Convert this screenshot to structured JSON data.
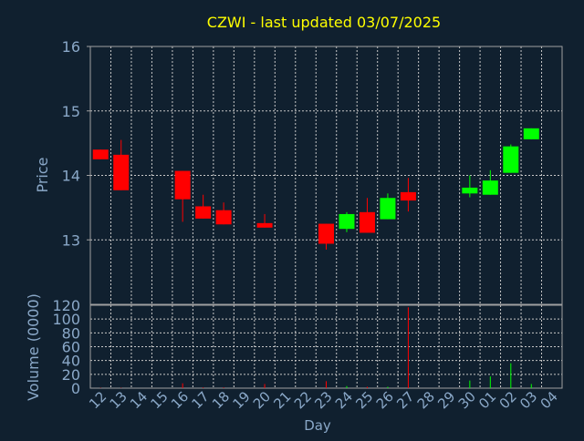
{
  "chart_data": {
    "type": "candlestick",
    "title": "CZWI - last updated 03/07/2025",
    "xlabel": "Day",
    "ylabel_price": "Price",
    "ylabel_volume": "Volume (0000)",
    "price_ylim": [
      12.0,
      16.0
    ],
    "price_ticks": [
      "16",
      "15",
      "14",
      "13"
    ],
    "volume_ylim": [
      0,
      120
    ],
    "volume_ticks": [
      "120",
      "100",
      "80",
      "60",
      "40",
      "20",
      "0"
    ],
    "x_tick_labels": [
      "12",
      "13",
      "14",
      "15",
      "16",
      "17",
      "18",
      "19",
      "20",
      "21",
      "22",
      "23",
      "24",
      "25",
      "26",
      "27",
      "28",
      "29",
      "30",
      "01",
      "02",
      "03",
      "04"
    ],
    "grid": true,
    "colors": {
      "background": "#10202f",
      "up": "#00ff00",
      "down": "#ff0000",
      "title": "#ffff00",
      "axis_text": "#8aa8c8",
      "frame": "#a0a0a0",
      "grid": "#c8c8c8"
    },
    "candles": [
      {
        "day": "12",
        "open": 14.4,
        "close": 14.25,
        "high": 14.4,
        "low": 14.25
      },
      {
        "day": "13",
        "open": 14.32,
        "close": 13.77,
        "high": 14.55,
        "low": 13.77
      },
      {
        "day": "16",
        "open": 14.07,
        "close": 13.63,
        "high": 14.07,
        "low": 13.28
      },
      {
        "day": "17",
        "open": 13.52,
        "close": 13.33,
        "high": 13.7,
        "low": 13.33
      },
      {
        "day": "18",
        "open": 13.46,
        "close": 13.24,
        "high": 13.58,
        "low": 13.24
      },
      {
        "day": "20",
        "open": 13.26,
        "close": 13.19,
        "high": 13.4,
        "low": 13.19
      },
      {
        "day": "23",
        "open": 13.25,
        "close": 12.94,
        "high": 13.25,
        "low": 12.85
      },
      {
        "day": "24",
        "open": 13.17,
        "close": 13.4,
        "high": 13.43,
        "low": 13.12
      },
      {
        "day": "25",
        "open": 13.43,
        "close": 13.11,
        "high": 13.65,
        "low": 13.11
      },
      {
        "day": "26",
        "open": 13.32,
        "close": 13.65,
        "high": 13.72,
        "low": 13.32
      },
      {
        "day": "27",
        "open": 13.74,
        "close": 13.61,
        "high": 13.96,
        "low": 13.44
      },
      {
        "day": "30",
        "open": 13.72,
        "close": 13.81,
        "high": 14.0,
        "low": 13.66
      },
      {
        "day": "01",
        "open": 13.7,
        "close": 13.92,
        "high": 14.08,
        "low": 13.7
      },
      {
        "day": "02",
        "open": 14.04,
        "close": 14.45,
        "high": 14.48,
        "low": 14.04
      },
      {
        "day": "03",
        "open": 14.56,
        "close": 14.73,
        "high": 14.73,
        "low": 14.56
      }
    ],
    "volume": [
      {
        "day": "12",
        "value": 0.5,
        "direction": "down"
      },
      {
        "day": "13",
        "value": 0.5,
        "direction": "down"
      },
      {
        "day": "16",
        "value": 7,
        "direction": "down"
      },
      {
        "day": "17",
        "value": 1,
        "direction": "down"
      },
      {
        "day": "18",
        "value": 1,
        "direction": "down"
      },
      {
        "day": "20",
        "value": 6,
        "direction": "down"
      },
      {
        "day": "23",
        "value": 10,
        "direction": "down"
      },
      {
        "day": "24",
        "value": 3,
        "direction": "up"
      },
      {
        "day": "25",
        "value": 2,
        "direction": "down"
      },
      {
        "day": "26",
        "value": 2,
        "direction": "up"
      },
      {
        "day": "27",
        "value": 117,
        "direction": "down"
      },
      {
        "day": "30",
        "value": 11,
        "direction": "up"
      },
      {
        "day": "01",
        "value": 17,
        "direction": "up"
      },
      {
        "day": "02",
        "value": 36,
        "direction": "up"
      },
      {
        "day": "03",
        "value": 6,
        "direction": "up"
      }
    ]
  }
}
